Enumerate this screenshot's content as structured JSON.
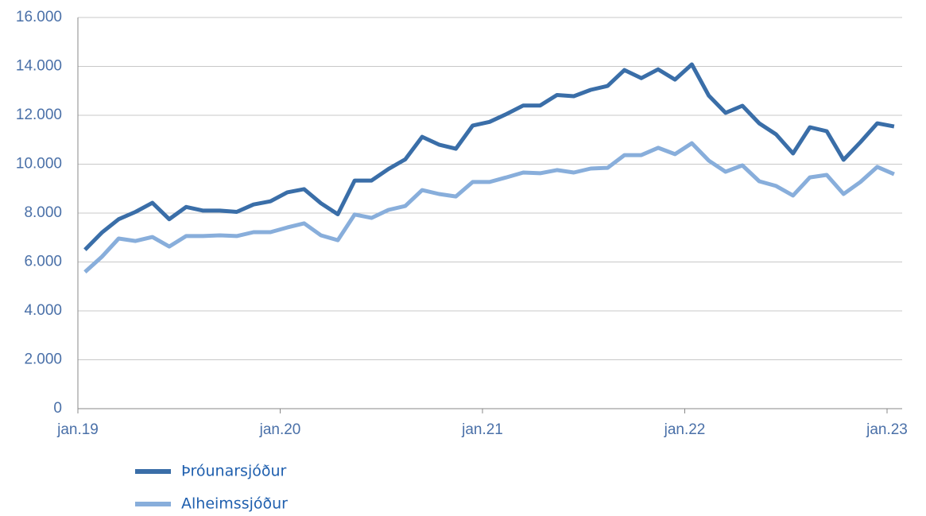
{
  "chart_data": {
    "type": "line",
    "categories": [
      "jan.19",
      null,
      null,
      null,
      null,
      null,
      null,
      null,
      null,
      null,
      null,
      null,
      "jan.20",
      null,
      null,
      null,
      null,
      null,
      null,
      null,
      null,
      null,
      null,
      null,
      "jan.21",
      null,
      null,
      null,
      null,
      null,
      null,
      null,
      null,
      null,
      null,
      null,
      "jan.22",
      null,
      null,
      null,
      null,
      null,
      null,
      null,
      null,
      null,
      null,
      null,
      "jan.23"
    ],
    "series": [
      {
        "name": "Þróunarsjóður",
        "color": "#3a6ea8",
        "values": [
          6500,
          7200,
          7750,
          8050,
          8420,
          7750,
          8250,
          8100,
          8100,
          8050,
          8350,
          8480,
          8850,
          8980,
          8400,
          7950,
          9330,
          9330,
          9800,
          10200,
          11120,
          10800,
          10630,
          11580,
          11730,
          12050,
          12400,
          12400,
          12830,
          12780,
          13040,
          13200,
          13850,
          13520,
          13880,
          13460,
          14080,
          12810,
          12100,
          12390,
          11670,
          11220,
          10440,
          11510,
          11350,
          10180,
          10900,
          11670,
          11540
        ]
      },
      {
        "name": "Alheimssjóður",
        "color": "#88aedb",
        "values": [
          5590,
          6210,
          6960,
          6860,
          7020,
          6630,
          7060,
          7060,
          7090,
          7060,
          7220,
          7220,
          7410,
          7580,
          7090,
          6890,
          7940,
          7800,
          8130,
          8290,
          8940,
          8780,
          8680,
          9270,
          9270,
          9460,
          9660,
          9630,
          9760,
          9660,
          9820,
          9850,
          10370,
          10370,
          10670,
          10410,
          10860,
          10150,
          9690,
          9950,
          9300,
          9110,
          8720,
          9460,
          9560,
          8780,
          9270,
          9890,
          9590
        ]
      }
    ],
    "ylim": [
      0,
      16000
    ],
    "yticks": [
      0,
      {
        "value": 2000,
        "label": "2.000"
      },
      {
        "value": 4000,
        "label": "4.000"
      },
      {
        "value": 6000,
        "label": "6.000"
      },
      {
        "value": 8000,
        "label": "8.000"
      },
      {
        "value": 10000,
        "label": "10.000"
      },
      {
        "value": 12000,
        "label": "12.000"
      },
      {
        "value": 14000,
        "label": "14.000"
      },
      {
        "value": 16000,
        "label": "16.000"
      }
    ],
    "grid": true
  }
}
